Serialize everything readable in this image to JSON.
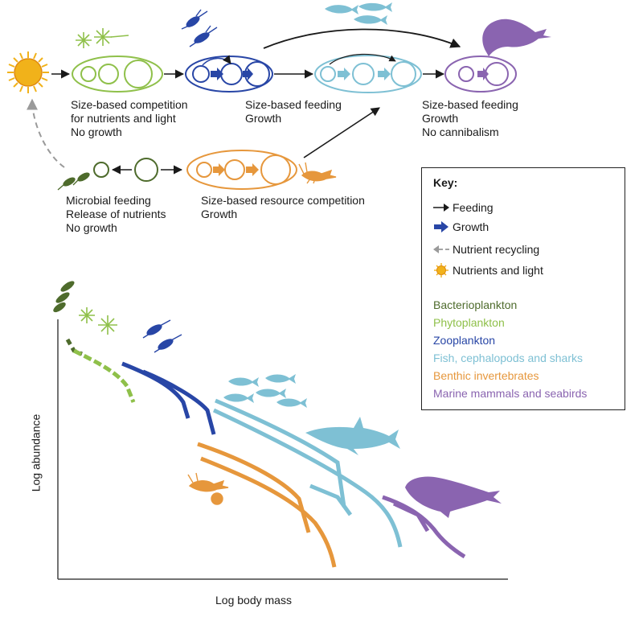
{
  "colors": {
    "bacterio": "#4e6b2c",
    "phyto": "#8fc04a",
    "zoo": "#2846a6",
    "fish": "#7ec0d4",
    "benthic": "#e6973c",
    "mammal": "#8a64b0",
    "sun": "#f1b21a",
    "black": "#1a1a1a",
    "grey": "#9a9a9a"
  },
  "top_labels": {
    "phyto": [
      "Size-based competition",
      "for nutrients and light",
      "No growth"
    ],
    "zoo": [
      "Size-based feeding",
      "Growth"
    ],
    "mammal": [
      "Size-based feeding",
      "Growth",
      "No cannibalism"
    ],
    "microbe": [
      "Microbial feeding",
      "Release of nutrients",
      "No growth"
    ],
    "benthic": [
      "Size-based resource competition",
      "Growth"
    ]
  },
  "key": {
    "title": "Key:",
    "feeding": "Feeding",
    "growth": "Growth",
    "recycling": "Nutrient recycling",
    "nutrients": "Nutrients and light",
    "groups": [
      {
        "name": "Bacterioplankton",
        "color": "#4e6b2c"
      },
      {
        "name": "Phytoplankton",
        "color": "#8fc04a"
      },
      {
        "name": "Zooplankton",
        "color": "#2846a6"
      },
      {
        "name": "Fish, cephalopods and sharks",
        "color": "#7ec0d4"
      },
      {
        "name": "Benthic invertebrates",
        "color": "#e6973c"
      },
      {
        "name": "Marine mammals and seabirds",
        "color": "#8a64b0"
      }
    ]
  },
  "axes": {
    "x_label": "Log body mass",
    "y_label": "Log abundance"
  }
}
